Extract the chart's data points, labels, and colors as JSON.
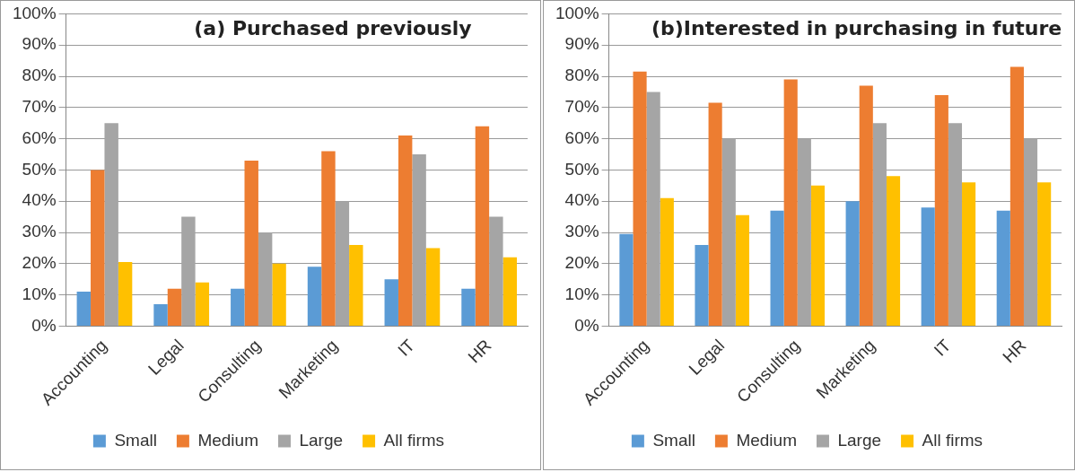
{
  "chart_data": [
    {
      "type": "bar",
      "title": "(a) Purchased previously",
      "categories": [
        "Accounting",
        "Legal",
        "Consulting",
        "Marketing",
        "IT",
        "HR"
      ],
      "series": [
        {
          "name": "Small",
          "color": "#5b9bd5",
          "values": [
            11,
            7,
            12,
            19,
            15,
            12
          ]
        },
        {
          "name": "Medium",
          "color": "#ed7d31",
          "values": [
            50,
            12,
            53,
            56,
            61,
            64
          ]
        },
        {
          "name": "Large",
          "color": "#a5a5a5",
          "values": [
            65,
            35,
            30,
            40,
            55,
            35
          ]
        },
        {
          "name": "All firms",
          "color": "#ffc000",
          "values": [
            20.5,
            14,
            20,
            26,
            25,
            22
          ]
        }
      ],
      "ylim": [
        0,
        100
      ],
      "yticks": [
        {
          "value": 0,
          "label": "0%"
        },
        {
          "value": 10,
          "label": "10%"
        },
        {
          "value": 20,
          "label": "20%"
        },
        {
          "value": 30,
          "label": "30%"
        },
        {
          "value": 40,
          "label": "40%"
        },
        {
          "value": 50,
          "label": "50%"
        },
        {
          "value": 60,
          "label": "60%"
        },
        {
          "value": 70,
          "label": "70%"
        },
        {
          "value": 80,
          "label": "80%"
        },
        {
          "value": 90,
          "label": "90%"
        },
        {
          "value": 100,
          "label": "100%"
        }
      ],
      "grid": "y",
      "legend": "bottom"
    },
    {
      "type": "bar",
      "title": "(b)Interested in purchasing in future",
      "categories": [
        "Accounting",
        "Legal",
        "Consulting",
        "Marketing",
        "IT",
        "HR"
      ],
      "series": [
        {
          "name": "Small",
          "color": "#5b9bd5",
          "values": [
            29.5,
            26,
            37,
            40,
            38,
            37
          ]
        },
        {
          "name": "Medium",
          "color": "#ed7d31",
          "values": [
            81.5,
            71.5,
            79,
            77,
            74,
            83
          ]
        },
        {
          "name": "Large",
          "color": "#a5a5a5",
          "values": [
            75,
            60,
            60,
            65,
            65,
            60
          ]
        },
        {
          "name": "All firms",
          "color": "#ffc000",
          "values": [
            41,
            35.5,
            45,
            48,
            46,
            46
          ]
        }
      ],
      "ylim": [
        0,
        100
      ],
      "yticks": [
        {
          "value": 0,
          "label": "0%"
        },
        {
          "value": 10,
          "label": "10%"
        },
        {
          "value": 20,
          "label": "20%"
        },
        {
          "value": 30,
          "label": "30%"
        },
        {
          "value": 40,
          "label": "40%"
        },
        {
          "value": 50,
          "label": "50%"
        },
        {
          "value": 60,
          "label": "60%"
        },
        {
          "value": 70,
          "label": "70%"
        },
        {
          "value": 80,
          "label": "80%"
        },
        {
          "value": 90,
          "label": "90%"
        },
        {
          "value": 100,
          "label": "100%"
        }
      ],
      "grid": "y",
      "legend": "bottom"
    }
  ]
}
